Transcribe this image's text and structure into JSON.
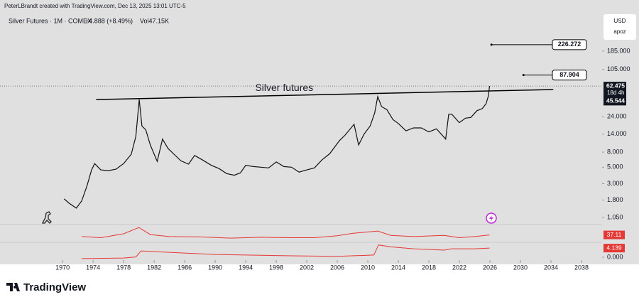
{
  "chart_data": {
    "type": "line",
    "header": "PeterLBrandt created with TradingView.com, Dec 13, 2025 13:01 UTC-5",
    "symbol": "Silver Futures · 1M · COMEX",
    "change": "+4.888 (+8.49%)",
    "volume": "Vol47.15K",
    "currency": "USD",
    "scale_mode": "apoz",
    "log_scale": true,
    "color": "#111111",
    "x": [
      1970.2,
      1970.8,
      1971.8,
      1972.5,
      1973.2,
      1973.8,
      1974.2,
      1975.0,
      1976.0,
      1977.0,
      1978.0,
      1979.0,
      1979.6,
      1980.05,
      1980.4,
      1980.9,
      1981.5,
      1982.4,
      1983.1,
      1983.8,
      1984.6,
      1985.5,
      1986.5,
      1987.3,
      1988.2,
      1989.5,
      1990.5,
      1991.5,
      1992.5,
      1993.3,
      1994.0,
      1995.0,
      1996.0,
      1997.0,
      1998.0,
      1999.0,
      2000.0,
      2001.0,
      2002.0,
      2003.0,
      2004.0,
      2005.0,
      2006.3,
      2007.0,
      2008.2,
      2008.8,
      2009.5,
      2010.3,
      2010.9,
      2011.3,
      2011.8,
      2012.5,
      2013.3,
      2014.0,
      2015.0,
      2016.0,
      2017.0,
      2018.0,
      2019.0,
      2020.2,
      2020.6,
      2021.0,
      2022.0,
      2022.8,
      2023.5,
      2024.3,
      2025.0,
      2025.5,
      2025.8,
      2025.95
    ],
    "values": [
      1.87,
      1.65,
      1.4,
      1.75,
      2.8,
      4.6,
      5.6,
      4.6,
      4.5,
      4.7,
      5.6,
      7.5,
      13,
      41,
      18,
      16,
      10,
      6,
      12,
      9,
      7.5,
      6.1,
      5.5,
      7.2,
      6.4,
      5.3,
      4.8,
      4.1,
      3.9,
      4.2,
      5.3,
      5.1,
      5.0,
      4.9,
      5.9,
      5.1,
      5.0,
      4.3,
      4.6,
      4.9,
      6.3,
      7.6,
      11.5,
      13.5,
      19,
      10,
      14,
      18,
      27,
      45,
      33,
      30,
      22,
      19.5,
      15.5,
      17,
      17,
      15,
      16.5,
      12,
      26,
      26,
      20,
      23,
      23.5,
      29,
      31,
      36,
      46,
      62.475
    ],
    "xlim": [
      1961.8,
      2040.7
    ],
    "xticks": [
      1970,
      1974,
      1978,
      1982,
      1986,
      1990,
      1994,
      1998,
      2002,
      2006,
      2010,
      2014,
      2018,
      2022,
      2026,
      2030,
      2034,
      2038
    ],
    "ylim": [
      0.86,
      583
    ],
    "yticks": [
      {
        "value": 185,
        "label": "185.000"
      },
      {
        "value": 105,
        "label": "105.000"
      },
      {
        "value": 24,
        "label": "24.000"
      },
      {
        "value": 14,
        "label": "14.000"
      },
      {
        "value": 8,
        "label": "8.000"
      },
      {
        "value": 5,
        "label": "5.000"
      },
      {
        "value": 3,
        "label": "3.000"
      },
      {
        "value": 1.8,
        "label": "1.800"
      },
      {
        "value": 1.05,
        "label": "1.050"
      }
    ],
    "last_price": {
      "value": 62.475,
      "label": "62.475",
      "countdown": "18d 4h"
    },
    "price_label": {
      "value": 45.544,
      "label": "45.544"
    },
    "targets": [
      {
        "x": 2026.2,
        "value": 226.272,
        "label": "226.272"
      },
      {
        "x": 2030.4,
        "value": 87.904,
        "label": "87.904"
      }
    ],
    "trendline": {
      "label": "Silver futures",
      "x": [
        1974.4,
        2034.3
      ],
      "values": [
        41,
        56
      ]
    },
    "indicators": [
      {
        "color": "#e53935",
        "ylim": [
          20,
          60
        ],
        "x": [
          1972.5,
          1975,
          1978,
          1980,
          1981.5,
          1984,
          1988,
          1992,
          1996,
          2000,
          2003,
          2006,
          2008,
          2011.3,
          2013,
          2016,
          2020,
          2022,
          2024,
          2025.95
        ],
        "values": [
          33,
          30,
          40,
          56,
          38,
          33,
          32,
          29,
          31,
          30,
          30,
          35,
          41,
          47,
          36,
          33,
          36,
          30,
          33,
          37.11
        ],
        "value_labels": {
          "19": "37.11"
        }
      },
      {
        "color": "#e53935",
        "ylim": [
          0,
          6
        ],
        "yticks": [
          {
            "value": 0,
            "label": "0.000"
          }
        ],
        "x": [
          1972.5,
          1978,
          1979.6,
          1980.3,
          1983,
          1990,
          2000,
          2006,
          2010.8,
          2011.4,
          2013,
          2016,
          2020,
          2021,
          2024,
          2025.95
        ],
        "values": [
          0.3,
          0.5,
          0.9,
          3.1,
          2.7,
          1.8,
          1.3,
          1.1,
          1.6,
          5.3,
          4.6,
          3.9,
          3.4,
          3.9,
          3.9,
          4.139
        ],
        "value_labels": {
          "15": "4.139"
        }
      }
    ],
    "footer": "TradingView"
  }
}
